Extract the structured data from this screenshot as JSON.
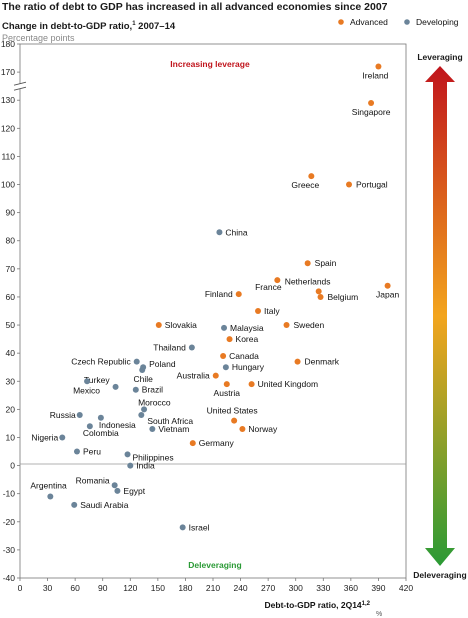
{
  "header": {
    "title": "The ratio of debt to GDP has increased in all advanced economies since 2007",
    "subtitle": "Change in debt-to-GDP ratio,",
    "subtitle_sup": "1",
    "subtitle_years": "2007–14",
    "units": "Percentage points"
  },
  "colors": {
    "advanced": "#e87a23",
    "developing": "#6b8499",
    "arrow_top": "#c0141c",
    "arrow_mid": "#f3a51e",
    "arrow_bottom": "#2a9a35"
  },
  "legend": {
    "advanced": "Advanced",
    "developing": "Developing"
  },
  "annotations": {
    "increasing": "Increasing leverage",
    "decreasing": "Deleveraging",
    "arrow_top": "Leveraging",
    "arrow_bottom": "Deleveraging"
  },
  "chart_data": {
    "type": "scatter",
    "xlabel": "Debt-to-GDP ratio, 2Q14",
    "xlabel_sup": "1,2",
    "xlabel_unit": "%",
    "xlim": [
      0,
      420
    ],
    "ylim": [
      -40,
      180
    ],
    "x_ticks": [
      0,
      30,
      60,
      90,
      120,
      150,
      180,
      210,
      240,
      270,
      300,
      330,
      360,
      390,
      420
    ],
    "y_ticks": [
      -40,
      -30,
      -20,
      -10,
      0,
      10,
      20,
      30,
      40,
      50,
      60,
      70,
      80,
      90,
      100,
      110,
      120,
      130,
      170,
      180
    ],
    "y_axis_break": "between 110 and 170 (130 is drawn in the 120 slot)",
    "series": [
      {
        "name": "Advanced",
        "points": [
          {
            "label": "Ireland",
            "x": 390,
            "y": 172
          },
          {
            "label": "Singapore",
            "x": 382,
            "y": 129
          },
          {
            "label": "Greece",
            "x": 317,
            "y": 103
          },
          {
            "label": "Portugal",
            "x": 358,
            "y": 100
          },
          {
            "label": "Spain",
            "x": 313,
            "y": 72
          },
          {
            "label": "Netherlands",
            "x": 325,
            "y": 62
          },
          {
            "label": "France",
            "x": 280,
            "y": 66
          },
          {
            "label": "Belgium",
            "x": 327,
            "y": 60
          },
          {
            "label": "Japan",
            "x": 400,
            "y": 64
          },
          {
            "label": "Finland",
            "x": 238,
            "y": 61
          },
          {
            "label": "Italy",
            "x": 259,
            "y": 55
          },
          {
            "label": "Sweden",
            "x": 290,
            "y": 50
          },
          {
            "label": "Slovakia",
            "x": 151,
            "y": 50
          },
          {
            "label": "Korea",
            "x": 228,
            "y": 45
          },
          {
            "label": "Canada",
            "x": 221,
            "y": 39
          },
          {
            "label": "Denmark",
            "x": 302,
            "y": 37
          },
          {
            "label": "Australia",
            "x": 213,
            "y": 32
          },
          {
            "label": "Austria",
            "x": 225,
            "y": 29
          },
          {
            "label": "United Kingdom",
            "x": 252,
            "y": 29
          },
          {
            "label": "United States",
            "x": 233,
            "y": 16
          },
          {
            "label": "Norway",
            "x": 242,
            "y": 13
          },
          {
            "label": "Germany",
            "x": 188,
            "y": 8
          }
        ]
      },
      {
        "name": "Developing",
        "points": [
          {
            "label": "China",
            "x": 217,
            "y": 83
          },
          {
            "label": "Malaysia",
            "x": 222,
            "y": 49
          },
          {
            "label": "Thailand",
            "x": 187,
            "y": 42
          },
          {
            "label": "Hungary",
            "x": 224,
            "y": 35
          },
          {
            "label": "Czech Republic",
            "x": 127,
            "y": 37
          },
          {
            "label": "Poland",
            "x": 134,
            "y": 35
          },
          {
            "label": "Chile",
            "x": 133,
            "y": 34
          },
          {
            "label": "Turkey",
            "x": 104,
            "y": 28
          },
          {
            "label": "Mexico",
            "x": 73,
            "y": 30
          },
          {
            "label": "Brazil",
            "x": 126,
            "y": 27
          },
          {
            "label": "Morocco",
            "x": 135,
            "y": 20
          },
          {
            "label": "Russia",
            "x": 65,
            "y": 18
          },
          {
            "label": "Indonesia",
            "x": 88,
            "y": 17
          },
          {
            "label": "South Africa",
            "x": 132,
            "y": 18
          },
          {
            "label": "Vietnam",
            "x": 144,
            "y": 13
          },
          {
            "label": "Colombia",
            "x": 76,
            "y": 14
          },
          {
            "label": "Nigeria",
            "x": 46,
            "y": 10
          },
          {
            "label": "Peru",
            "x": 62,
            "y": 5
          },
          {
            "label": "Philippines",
            "x": 117,
            "y": 4
          },
          {
            "label": "India",
            "x": 120,
            "y": 0
          },
          {
            "label": "Argentina",
            "x": 33,
            "y": -11
          },
          {
            "label": "Romania",
            "x": 103,
            "y": -7
          },
          {
            "label": "Egypt",
            "x": 106,
            "y": -9
          },
          {
            "label": "Saudi Arabia",
            "x": 59,
            "y": -14
          },
          {
            "label": "Israel",
            "x": 177,
            "y": -22
          }
        ]
      }
    ]
  }
}
